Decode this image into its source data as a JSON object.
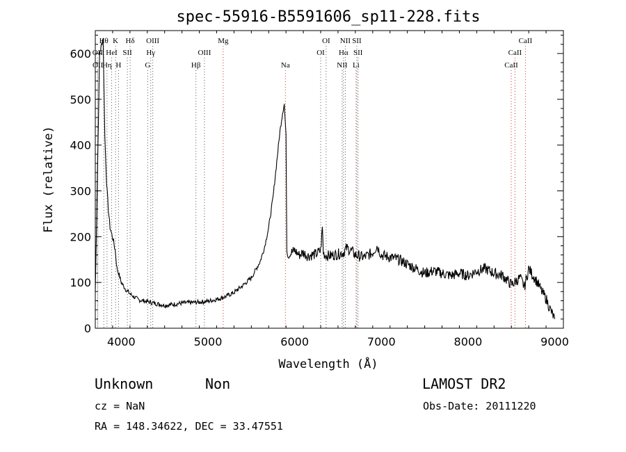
{
  "chart_data": {
    "type": "line",
    "title": "spec-55916-B5591606_sp11-228.fits",
    "xlabel": "Wavelength (Å)",
    "ylabel": "Flux (relative)",
    "xlim": [
      3700,
      9100
    ],
    "ylim": [
      0,
      650
    ],
    "xticks": [
      4000,
      5000,
      6000,
      7000,
      8000,
      9000
    ],
    "yticks": [
      0,
      100,
      200,
      300,
      400,
      500,
      600
    ],
    "grid": false,
    "series": [
      {
        "x": [
          3700,
          3750,
          3790,
          3810,
          3830,
          3850,
          3870,
          3890,
          3910,
          3930,
          3950,
          3970,
          4000,
          4050,
          4100,
          4150,
          4200,
          4300,
          4400,
          4500,
          4600,
          4700,
          4800,
          4900,
          5000,
          5100,
          5200,
          5300,
          5400,
          5500,
          5600,
          5650,
          5700,
          5750,
          5800,
          5830,
          5860,
          5880,
          5900,
          5910,
          5920,
          5930,
          5960,
          6000,
          6050,
          6100,
          6150,
          6200,
          6250,
          6300,
          6320,
          6330,
          6350,
          6400,
          6500,
          6560,
          6600,
          6650,
          6700,
          6800,
          6900,
          6950,
          7000,
          7100,
          7200,
          7300,
          7400,
          7500,
          7600,
          7700,
          7800,
          7900,
          8000,
          8050,
          8100,
          8200,
          8300,
          8400,
          8500,
          8600,
          8650,
          8700,
          8750,
          8800,
          8850,
          8900,
          8950,
          9000
        ],
        "values": [
          80,
          600,
          635,
          420,
          320,
          260,
          220,
          205,
          190,
          170,
          130,
          120,
          100,
          85,
          75,
          68,
          62,
          58,
          54,
          50,
          52,
          55,
          56,
          57,
          59,
          63,
          69,
          78,
          93,
          110,
          145,
          175,
          220,
          285,
          375,
          430,
          470,
          490,
          420,
          170,
          160,
          155,
          165,
          170,
          160,
          165,
          158,
          160,
          162,
          170,
          220,
          165,
          160,
          158,
          162,
          165,
          175,
          170,
          160,
          155,
          165,
          180,
          160,
          155,
          150,
          140,
          130,
          120,
          125,
          120,
          115,
          120,
          115,
          120,
          125,
          130,
          120,
          115,
          95,
          110,
          90,
          130,
          115,
          100,
          80,
          65,
          40,
          20
        ]
      }
    ],
    "line_markers": [
      {
        "label": "Hθ",
        "x": 3798,
        "row": 1,
        "color": "#555555"
      },
      {
        "label": "OII",
        "x": 3727,
        "row": 2,
        "color": "#555555"
      },
      {
        "label": "OII",
        "x": 3729,
        "row": 3,
        "color": "#555555"
      },
      {
        "label": "Hη",
        "x": 3835,
        "row": 3,
        "color": "#555555"
      },
      {
        "label": "K",
        "x": 3934,
        "row": 1,
        "color": "#555555"
      },
      {
        "label": "HeI",
        "x": 3889,
        "row": 2,
        "color": "#555555"
      },
      {
        "label": "SII",
        "x": 4070,
        "row": 2,
        "color": "#555555"
      },
      {
        "label": "H",
        "x": 3968,
        "row": 3,
        "color": "#555555"
      },
      {
        "label": "Hδ",
        "x": 4102,
        "row": 1,
        "color": "#555555"
      },
      {
        "label": "OIII",
        "x": 4363,
        "row": 1,
        "color": "#555555"
      },
      {
        "label": "Hγ",
        "x": 4340,
        "row": 2,
        "color": "#555555"
      },
      {
        "label": "G",
        "x": 4305,
        "row": 3,
        "color": "#555555"
      },
      {
        "label": "OIII",
        "x": 4959,
        "row": 2,
        "color": "#555555"
      },
      {
        "label": "Hβ",
        "x": 4861,
        "row": 3,
        "color": "#555555"
      },
      {
        "label": "Mg",
        "x": 5175,
        "row": 1,
        "color": "#cc3333"
      },
      {
        "label": "Na",
        "x": 5893,
        "row": 3,
        "color": "#cc3333"
      },
      {
        "label": "OI",
        "x": 6363,
        "row": 1,
        "color": "#555555"
      },
      {
        "label": "OI",
        "x": 6300,
        "row": 2,
        "color": "#555555"
      },
      {
        "label": "NII",
        "x": 6584,
        "row": 1,
        "color": "#555555"
      },
      {
        "label": "SII",
        "x": 6717,
        "row": 1,
        "color": "#555555"
      },
      {
        "label": "Hα",
        "x": 6563,
        "row": 2,
        "color": "#555555"
      },
      {
        "label": "SII",
        "x": 6731,
        "row": 2,
        "color": "#555555"
      },
      {
        "label": "NII",
        "x": 6548,
        "row": 3,
        "color": "#555555"
      },
      {
        "label": "Li",
        "x": 6708,
        "row": 3,
        "color": "#cc3333"
      },
      {
        "label": "CaII",
        "x": 8662,
        "row": 1,
        "color": "#cc3333"
      },
      {
        "label": "CaII",
        "x": 8542,
        "row": 2,
        "color": "#cc3333"
      },
      {
        "label": "CaII",
        "x": 8498,
        "row": 3,
        "color": "#cc3333"
      }
    ]
  },
  "footer": {
    "object_class": "Unknown",
    "subclass": "Non",
    "survey": "LAMOST DR2",
    "redshift": "cz = NaN",
    "obs_date": "Obs-Date: 20111220",
    "coords": "RA = 148.34622, DEC =  33.47551"
  }
}
